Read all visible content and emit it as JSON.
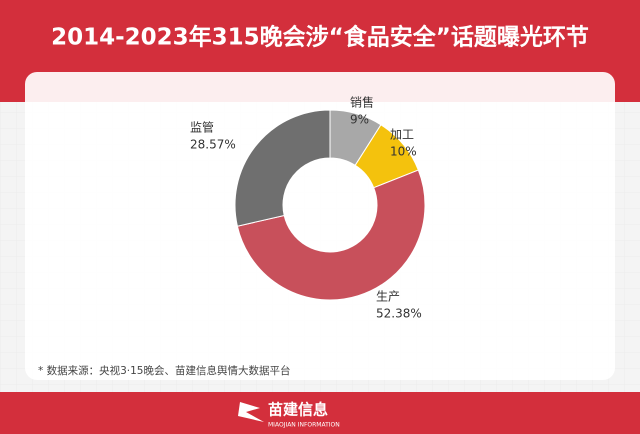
{
  "chart_data": {
    "type": "donut",
    "title": "2014-2023年315晚会涉“食品安全”话题曝光环节",
    "categories": [
      "销售",
      "加工",
      "生产",
      "监管"
    ],
    "values": [
      9,
      10,
      52.38,
      28.57
    ],
    "value_labels": [
      "9%",
      "10%",
      "52.38%",
      "28.57%"
    ],
    "colors": [
      "#a8a8a8",
      "#f4c20d",
      "#c8505b",
      "#6f6f6f"
    ],
    "source": "* 数据来源：央视3·15晚会、苗建信息舆情大数据平台"
  },
  "footer": {
    "brand": "苗建信息",
    "brand_en": "MIAOJIAN INFORMATION"
  }
}
